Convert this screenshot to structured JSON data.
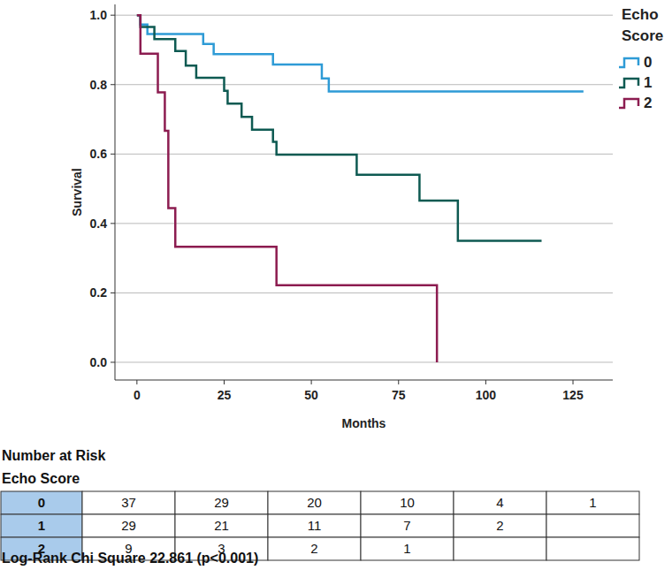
{
  "chart_data": {
    "type": "step",
    "x_label": "Months",
    "y_label": "Survival",
    "legend_title": "Echo Score",
    "legend": "right",
    "grid": "y",
    "xlim": [
      -6.3,
      136.4
    ],
    "ylim": [
      -0.051,
      1.031
    ],
    "xticks": [
      0,
      25,
      50,
      75,
      100,
      125
    ],
    "yticks": [
      {
        "value": 0,
        "label": "0.0"
      },
      {
        "value": 0.2,
        "label": "0.2"
      },
      {
        "value": 0.4,
        "label": "0.4"
      },
      {
        "value": 0.6,
        "label": "0.6"
      },
      {
        "value": 0.8,
        "label": "0.8"
      },
      {
        "value": 1.0,
        "label": "1.0"
      }
    ],
    "series": [
      {
        "name": "0",
        "color": "#2e9bd6",
        "x": [
          0,
          1,
          3,
          19,
          22,
          39,
          53,
          55,
          128
        ],
        "values": [
          1.0,
          0.973,
          0.946,
          0.917,
          0.888,
          0.858,
          0.818,
          0.78,
          0.78
        ]
      },
      {
        "name": "1",
        "color": "#0e5a52",
        "x": [
          0,
          1,
          5,
          11,
          14,
          17,
          25,
          26,
          30,
          33,
          39,
          40,
          63,
          81,
          92,
          116
        ],
        "values": [
          1.0,
          0.966,
          0.931,
          0.897,
          0.855,
          0.82,
          0.782,
          0.745,
          0.707,
          0.67,
          0.635,
          0.598,
          0.54,
          0.466,
          0.35,
          0.35
        ]
      },
      {
        "name": "2",
        "color": "#8c1c50",
        "x": [
          0,
          1,
          6,
          8,
          9,
          11,
          40,
          86
        ],
        "values": [
          1.0,
          0.889,
          0.778,
          0.667,
          0.444,
          0.333,
          0.222,
          0.0
        ]
      }
    ]
  },
  "risk_table": {
    "title": "Number at Risk",
    "row_header": "Echo Score",
    "rows": [
      {
        "label": "0",
        "values": [
          37,
          29,
          20,
          10,
          4,
          1
        ]
      },
      {
        "label": "1",
        "values": [
          29,
          21,
          11,
          7,
          2,
          null
        ]
      },
      {
        "label": "2",
        "values": [
          9,
          3,
          2,
          1,
          null,
          null
        ]
      }
    ]
  },
  "footer": "Log-Rank Chi Square 22.861 (p<0.001)"
}
